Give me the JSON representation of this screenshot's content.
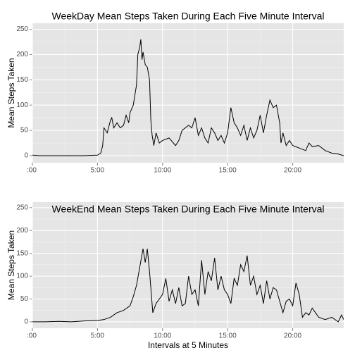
{
  "chart_data": [
    {
      "type": "line",
      "title": "WeekDay Mean Steps Taken During Each Five Minute Interval",
      "ylabel": "Mean Steps Taken",
      "x": [
        0,
        0.5,
        1,
        2,
        3,
        4,
        5,
        5.25,
        5.4,
        5.5,
        5.75,
        6,
        6.1,
        6.25,
        6.5,
        6.75,
        7,
        7.2,
        7.4,
        7.5,
        7.75,
        8,
        8.1,
        8.25,
        8.33,
        8.42,
        8.5,
        8.67,
        8.83,
        9,
        9.1,
        9.2,
        9.33,
        9.5,
        9.75,
        10,
        10.5,
        11,
        11.25,
        11.5,
        12,
        12.25,
        12.5,
        12.75,
        13,
        13.25,
        13.5,
        13.75,
        14,
        14.25,
        14.5,
        14.75,
        15,
        15.25,
        15.5,
        15.75,
        16,
        16.25,
        16.5,
        16.75,
        17,
        17.25,
        17.5,
        17.75,
        18,
        18.25,
        18.5,
        18.75,
        19,
        19.1,
        19.25,
        19.5,
        19.75,
        20,
        20.5,
        21,
        21.25,
        21.5,
        22,
        22.5,
        23,
        23.5,
        23.92
      ],
      "values": [
        1,
        0,
        0,
        0,
        0,
        0,
        1,
        5,
        20,
        55,
        45,
        70,
        75,
        55,
        65,
        55,
        60,
        80,
        65,
        85,
        100,
        140,
        200,
        215,
        230,
        190,
        205,
        180,
        175,
        150,
        70,
        40,
        20,
        45,
        25,
        30,
        35,
        20,
        30,
        50,
        60,
        55,
        75,
        40,
        55,
        35,
        25,
        55,
        45,
        30,
        40,
        25,
        45,
        95,
        65,
        55,
        40,
        60,
        30,
        55,
        35,
        50,
        80,
        45,
        80,
        110,
        95,
        100,
        65,
        25,
        45,
        20,
        30,
        20,
        15,
        10,
        25,
        18,
        20,
        10,
        5,
        3,
        0
      ],
      "color": "#000000",
      "xlim": [
        0,
        23.92
      ],
      "ylim": [
        -14,
        262
      ],
      "xticks": [
        {
          "value": 0,
          "label": ":00"
        },
        {
          "value": 5,
          "label": "5:00"
        },
        {
          "value": 10,
          "label": "10:00"
        },
        {
          "value": 15,
          "label": "15:00"
        },
        {
          "value": 20,
          "label": "20:00"
        }
      ],
      "yticks": [
        0,
        50,
        100,
        150,
        200,
        250
      ],
      "grid": true
    },
    {
      "type": "line",
      "title": "WeekEnd Mean Steps Taken During Each Five Minute Interval",
      "ylabel": "Mean Steps Taken",
      "xlabel": "Intervals at 5 Minutes",
      "x": [
        0,
        1,
        2,
        3,
        4,
        5,
        5.5,
        6,
        6.5,
        7,
        7.5,
        7.75,
        8,
        8.25,
        8.5,
        8.67,
        8.83,
        9,
        9.25,
        9.5,
        9.75,
        10,
        10.25,
        10.5,
        10.75,
        11,
        11.25,
        11.5,
        11.75,
        12,
        12.25,
        12.5,
        12.75,
        13,
        13.25,
        13.5,
        13.75,
        14,
        14.25,
        14.5,
        14.75,
        15,
        15.25,
        15.5,
        15.75,
        16,
        16.25,
        16.5,
        16.75,
        17,
        17.25,
        17.5,
        17.75,
        18,
        18.25,
        18.5,
        18.75,
        19,
        19.25,
        19.5,
        19.75,
        20,
        20.25,
        20.5,
        20.75,
        21,
        21.25,
        21.5,
        22,
        22.5,
        23,
        23.5,
        23.75,
        23.92
      ],
      "values": [
        0,
        0,
        1,
        0,
        2,
        3,
        5,
        10,
        20,
        25,
        35,
        55,
        80,
        120,
        160,
        130,
        160,
        110,
        20,
        40,
        50,
        60,
        95,
        45,
        70,
        40,
        75,
        35,
        40,
        100,
        60,
        70,
        35,
        135,
        60,
        110,
        90,
        140,
        70,
        100,
        70,
        60,
        40,
        95,
        80,
        125,
        110,
        145,
        80,
        100,
        60,
        80,
        40,
        90,
        50,
        75,
        70,
        45,
        20,
        45,
        50,
        35,
        85,
        60,
        10,
        20,
        15,
        30,
        10,
        5,
        10,
        0,
        15,
        5
      ],
      "color": "#000000",
      "xlim": [
        0,
        23.92
      ],
      "ylim": [
        -14,
        262
      ],
      "xticks": [
        {
          "value": 0,
          "label": ":00"
        },
        {
          "value": 5,
          "label": "5:00"
        },
        {
          "value": 10,
          "label": "10:00"
        },
        {
          "value": 15,
          "label": "15:00"
        },
        {
          "value": 20,
          "label": "20:00"
        }
      ],
      "yticks": [
        0,
        50,
        100,
        150,
        200,
        250
      ],
      "grid": true
    }
  ]
}
